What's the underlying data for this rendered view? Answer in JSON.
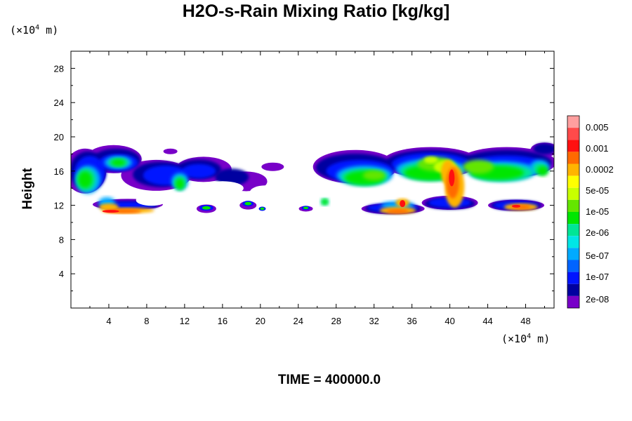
{
  "chart_data": {
    "type": "heatmap",
    "title": "H2O-s-Rain Mixing Ratio [kg/kg]",
    "ylabel": "Height",
    "xlabel": "",
    "x_unit": {
      "prefix": "(×10",
      "exp": "4",
      "suffix": " m)"
    },
    "y_unit": {
      "prefix": "(×10",
      "exp": "4",
      "suffix": " m)"
    },
    "xlim": [
      0,
      51
    ],
    "ylim": [
      0,
      30
    ],
    "x_ticks": [
      "4",
      "8",
      "12",
      "16",
      "20",
      "24",
      "28",
      "32",
      "36",
      "40",
      "44",
      "48"
    ],
    "y_ticks": [
      "4",
      "8",
      "12",
      "16",
      "20",
      "24",
      "28"
    ],
    "time_label": "TIME = 400000.0",
    "colorbar": {
      "labels": [
        "0.005",
        "0.001",
        "0.0002",
        "5e-05",
        "1e-05",
        "2e-06",
        "5e-07",
        "1e-07",
        "2e-08"
      ],
      "colors": [
        "#ff9f9f",
        "#ff4a4a",
        "#ff1010",
        "#ff6a00",
        "#ffb400",
        "#ffff00",
        "#c8ff00",
        "#64e600",
        "#00e600",
        "#00e696",
        "#00e6e6",
        "#00aaff",
        "#0064ff",
        "#0014ff",
        "#0000a0",
        "#7800c8"
      ]
    },
    "regions": [
      {
        "name": "upper cloud layer west",
        "x": [
          0,
          24
        ],
        "y": [
          13,
          19.5
        ],
        "level": "1e-07 to 5e-05"
      },
      {
        "name": "upper cloud layer east",
        "x": [
          25,
          51
        ],
        "y": [
          11,
          19.5
        ],
        "level": "1e-07 to 0.001"
      },
      {
        "name": "core near x=40",
        "x": [
          38,
          42
        ],
        "y": [
          11,
          18
        ],
        "level": "0.0002 to 0.001"
      },
      {
        "name": "lower band west",
        "x": [
          2,
          9
        ],
        "y": [
          10.5,
          12.5
        ],
        "level": "0.0002 to 0.001"
      }
    ]
  }
}
